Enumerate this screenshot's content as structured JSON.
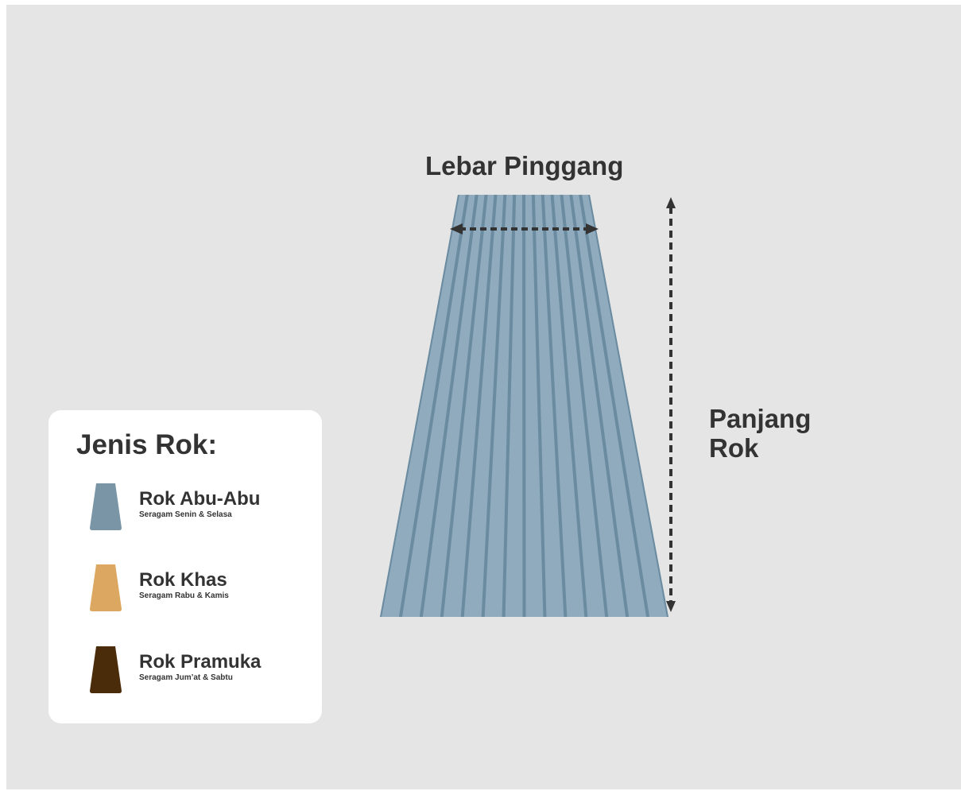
{
  "diagram": {
    "waist_label": "Lebar Pinggang",
    "length_label_line1": "Panjang",
    "length_label_line2": "Rok",
    "skirt_color": "#8fabbd",
    "stripe_color": "#6a8ba0",
    "arrow_color": "#333333"
  },
  "legend": {
    "title": "Jenis Rok:",
    "items": [
      {
        "name": "Rok Abu-Abu",
        "desc": "Seragam Senin & Selasa",
        "color": "#7a96a6"
      },
      {
        "name": "Rok Khas",
        "desc": "Seragam Rabu & Kamis",
        "color": "#dca760"
      },
      {
        "name": "Rok Pramuka",
        "desc": "Seragam Jum’at & Sabtu",
        "color": "#4a2c0a"
      }
    ]
  }
}
